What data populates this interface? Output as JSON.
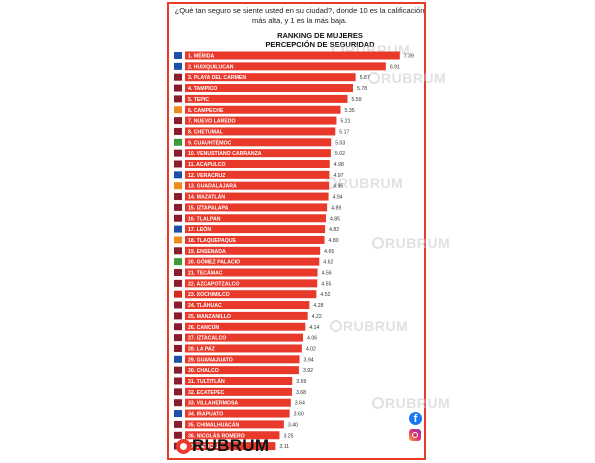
{
  "question": "¿Qué tan seguro se siente usted en su ciudad?, donde 10 es la calificación más alta, y  1 es la más baja.",
  "chart_data": {
    "type": "bar",
    "title": "RANKING DE MUJERES",
    "subtitle": "PERCEPCIÓN DE SEGURIDAD",
    "categories": [
      "1. MÉRIDA",
      "2. HUIXQUILUCAN",
      "3. PLAYA DEL CARMEN",
      "4. TAMPICO",
      "5. TEPIC",
      "6. CAMPECHE",
      "7. NUEVO LAREDO",
      "8. CHETUMAL",
      "9. CUAUHTÉMOC",
      "10. VENUSTIANO CARRANZA",
      "11. ACAPULCO",
      "12. VERACRUZ",
      "13. GUADALAJARA",
      "14. MAZATLÁN",
      "15. IZTAPALAPA",
      "16. TLALPAN",
      "17. LEÓN",
      "18. TLAQUEPAQUE",
      "19. ENSENADA",
      "20. GÓMEZ PALACIO",
      "21. TECÁMAC",
      "22. AZCAPOTZALCO",
      "23. XOCHIMILCO",
      "24. TLÁHUAC",
      "25. MANZANILLO",
      "26. CANCÚN",
      "27. IZTACALCO",
      "28. LA PAZ",
      "29. GUANAJUATO",
      "30. CHALCO",
      "31. TULTITLÁN",
      "32. ECATEPEC",
      "33. VILLAHERMOSA",
      "34. IRAPUATO",
      "35. CHIMALHUACÁN",
      "36. NICOLÁS ROMERO",
      "37. MEXICALI"
    ],
    "values": [
      7.39,
      6.91,
      5.87,
      5.78,
      5.59,
      5.35,
      5.21,
      5.17,
      5.03,
      5.02,
      4.98,
      4.97,
      4.96,
      4.94,
      4.89,
      4.85,
      4.82,
      4.8,
      4.65,
      4.62,
      4.56,
      4.55,
      4.52,
      4.28,
      4.22,
      4.14,
      4.06,
      4.02,
      3.94,
      3.92,
      3.69,
      3.68,
      3.64,
      3.6,
      3.4,
      3.25,
      3.11
    ],
    "labels": [
      "7.39",
      "6.91",
      "5.87",
      "5.78",
      "5.59",
      "5.35",
      "5.21",
      "5.17",
      "5.03",
      "5.02",
      "4.98",
      "4.97",
      "4.96",
      "4.94",
      "4.89",
      "4.85",
      "4.82",
      "4.80",
      "4.65",
      "4.62",
      "4.56",
      "4.55",
      "4.52",
      "4.28",
      "4.22",
      "4.14",
      "4.06",
      "4.02",
      "3.94",
      "3.92",
      "3.69",
      "3.68",
      "3.64",
      "3.60",
      "3.40",
      "3.25",
      "3.11"
    ],
    "party_badges": [
      "PAN",
      "PAN",
      "MORENA",
      "MORENA",
      "MORENA",
      "MC",
      "MORENA",
      "MORENA",
      "PVEM",
      "MORENA",
      "MORENA",
      "PAN",
      "MC",
      "MORENA",
      "MORENA",
      "MORENA",
      "PAN",
      "MC",
      "MORENA",
      "PVEM",
      "MORENA",
      "MORENA",
      "PT",
      "MORENA",
      "MORENA",
      "MORENA",
      "MORENA",
      "MORENA",
      "PAN",
      "MORENA",
      "MORENA",
      "MORENA",
      "MORENA",
      "PAN",
      "MORENA",
      "MORENA",
      "MORENA"
    ],
    "xlim": [
      0,
      7.5
    ],
    "bar_color": "#e8392b"
  },
  "badge_colors": {
    "PAN": "#1f4fa8",
    "MORENA": "#8a1c2b",
    "MC": "#f08a1c",
    "PVEM": "#3e9b3a",
    "PT": "#d72a1e"
  },
  "watermark": "RUBRUM",
  "brand": {
    "name": "RUBRUM",
    "accent": "#e8392b"
  },
  "social": {
    "facebook": "f"
  }
}
